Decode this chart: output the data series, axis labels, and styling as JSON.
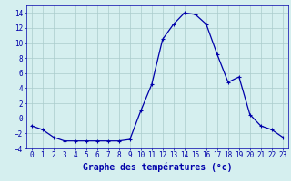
{
  "x": [
    0,
    1,
    2,
    3,
    4,
    5,
    6,
    7,
    8,
    9,
    10,
    11,
    12,
    13,
    14,
    15,
    16,
    17,
    18,
    19,
    20,
    21,
    22,
    23
  ],
  "y": [
    -1,
    -1.5,
    -2.5,
    -3,
    -3,
    -3,
    -3,
    -3,
    -3,
    -2.8,
    1,
    4.5,
    10.5,
    12.5,
    14,
    13.8,
    12.5,
    8.5,
    4.8,
    5.5,
    0.5,
    -1,
    -1.5,
    -2.5
  ],
  "line_color": "#0000aa",
  "marker": "+",
  "marker_color": "#0000aa",
  "bg_color": "#d5efef",
  "grid_color": "#aacccc",
  "xlabel": "Graphe des températures (°c)",
  "xlabel_fontsize": 7,
  "xlabel_color": "#0000aa",
  "ylim": [
    -4,
    15
  ],
  "xlim": [
    -0.5,
    23.5
  ],
  "yticks": [
    -4,
    -2,
    0,
    2,
    4,
    6,
    8,
    10,
    12,
    14
  ],
  "xticks": [
    0,
    1,
    2,
    3,
    4,
    5,
    6,
    7,
    8,
    9,
    10,
    11,
    12,
    13,
    14,
    15,
    16,
    17,
    18,
    19,
    20,
    21,
    22,
    23
  ],
  "tick_fontsize": 5.5,
  "tick_color": "#0000aa",
  "linewidth": 0.9,
  "markersize": 2.5,
  "markeredgewidth": 0.8
}
